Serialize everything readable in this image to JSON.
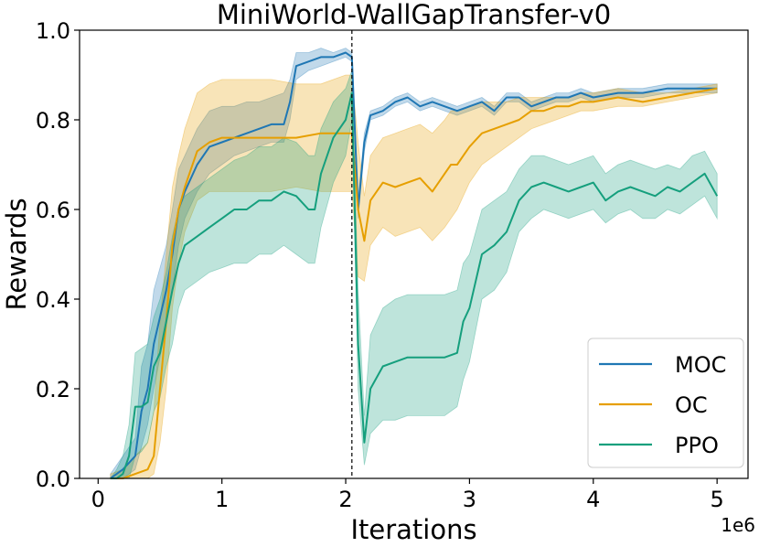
{
  "chart_data": {
    "type": "line",
    "title": "MiniWorld-WallGapTransfer-v0",
    "xlabel": "Iterations",
    "ylabel": "Rewards",
    "x_offset_label": "1e6",
    "xlim": [
      -0.15,
      5.25
    ],
    "ylim": [
      0,
      1.0
    ],
    "xticks": [
      0,
      1,
      2,
      3,
      4,
      5
    ],
    "xtick_labels": [
      "0",
      "1",
      "2",
      "3",
      "4",
      "5"
    ],
    "yticks": [
      0.0,
      0.2,
      0.4,
      0.6,
      0.8,
      1.0
    ],
    "ytick_labels": [
      "0.0",
      "0.2",
      "0.4",
      "0.6",
      "0.8",
      "1.0"
    ],
    "grid": false,
    "legend_position": "lower-right",
    "transfer_line_x": 2.05,
    "series": [
      {
        "name": "MOC",
        "color": "#1f77b4",
        "x": [
          0.1,
          0.2,
          0.3,
          0.35,
          0.4,
          0.45,
          0.5,
          0.55,
          0.6,
          0.65,
          0.7,
          0.8,
          0.9,
          1.0,
          1.1,
          1.2,
          1.3,
          1.4,
          1.5,
          1.55,
          1.6,
          1.7,
          1.8,
          1.9,
          2.0,
          2.05,
          2.1,
          2.15,
          2.2,
          2.3,
          2.4,
          2.5,
          2.6,
          2.7,
          2.8,
          2.9,
          3.0,
          3.1,
          3.2,
          3.3,
          3.4,
          3.5,
          3.6,
          3.7,
          3.8,
          3.9,
          4.0,
          4.2,
          4.4,
          4.6,
          4.8,
          5.0
        ],
        "mean": [
          0.0,
          0.02,
          0.05,
          0.15,
          0.2,
          0.3,
          0.36,
          0.42,
          0.5,
          0.6,
          0.64,
          0.7,
          0.74,
          0.75,
          0.76,
          0.77,
          0.78,
          0.79,
          0.79,
          0.84,
          0.92,
          0.93,
          0.94,
          0.94,
          0.95,
          0.94,
          0.6,
          0.75,
          0.81,
          0.82,
          0.84,
          0.85,
          0.83,
          0.84,
          0.83,
          0.82,
          0.83,
          0.84,
          0.82,
          0.85,
          0.85,
          0.83,
          0.84,
          0.85,
          0.85,
          0.86,
          0.85,
          0.86,
          0.86,
          0.87,
          0.87,
          0.87
        ],
        "lower": [
          0.0,
          0.0,
          0.02,
          0.07,
          0.12,
          0.2,
          0.27,
          0.34,
          0.42,
          0.52,
          0.58,
          0.64,
          0.68,
          0.7,
          0.72,
          0.73,
          0.74,
          0.75,
          0.75,
          0.8,
          0.89,
          0.91,
          0.92,
          0.93,
          0.94,
          0.93,
          0.58,
          0.73,
          0.8,
          0.81,
          0.83,
          0.84,
          0.82,
          0.83,
          0.82,
          0.81,
          0.82,
          0.83,
          0.81,
          0.84,
          0.84,
          0.82,
          0.83,
          0.84,
          0.84,
          0.85,
          0.84,
          0.85,
          0.85,
          0.86,
          0.86,
          0.86
        ],
        "upper": [
          0.01,
          0.05,
          0.09,
          0.25,
          0.3,
          0.42,
          0.47,
          0.52,
          0.6,
          0.69,
          0.72,
          0.78,
          0.82,
          0.83,
          0.83,
          0.84,
          0.84,
          0.85,
          0.86,
          0.89,
          0.95,
          0.95,
          0.96,
          0.95,
          0.96,
          0.95,
          0.62,
          0.77,
          0.82,
          0.83,
          0.85,
          0.86,
          0.84,
          0.85,
          0.84,
          0.83,
          0.84,
          0.85,
          0.83,
          0.86,
          0.86,
          0.84,
          0.85,
          0.86,
          0.86,
          0.87,
          0.86,
          0.87,
          0.87,
          0.88,
          0.88,
          0.88
        ]
      },
      {
        "name": "OC",
        "color": "#e69f00",
        "x": [
          0.1,
          0.2,
          0.3,
          0.4,
          0.45,
          0.5,
          0.55,
          0.6,
          0.65,
          0.7,
          0.8,
          0.9,
          1.0,
          1.2,
          1.4,
          1.6,
          1.8,
          2.0,
          2.05,
          2.1,
          2.15,
          2.2,
          2.3,
          2.4,
          2.5,
          2.6,
          2.7,
          2.8,
          2.85,
          2.9,
          3.0,
          3.1,
          3.2,
          3.3,
          3.4,
          3.5,
          3.6,
          3.7,
          3.8,
          3.9,
          4.0,
          4.2,
          4.4,
          4.6,
          4.8,
          5.0
        ],
        "mean": [
          0.0,
          0.0,
          0.01,
          0.02,
          0.05,
          0.2,
          0.35,
          0.52,
          0.6,
          0.65,
          0.73,
          0.75,
          0.76,
          0.76,
          0.76,
          0.76,
          0.77,
          0.77,
          0.77,
          0.6,
          0.53,
          0.62,
          0.66,
          0.65,
          0.66,
          0.67,
          0.64,
          0.68,
          0.7,
          0.7,
          0.74,
          0.77,
          0.78,
          0.79,
          0.8,
          0.82,
          0.82,
          0.83,
          0.83,
          0.84,
          0.84,
          0.85,
          0.84,
          0.85,
          0.86,
          0.87
        ],
        "lower": [
          0.0,
          0.0,
          0.0,
          0.0,
          0.01,
          0.08,
          0.2,
          0.38,
          0.48,
          0.55,
          0.62,
          0.64,
          0.64,
          0.64,
          0.64,
          0.65,
          0.64,
          0.64,
          0.64,
          0.45,
          0.44,
          0.52,
          0.56,
          0.54,
          0.55,
          0.56,
          0.53,
          0.56,
          0.58,
          0.6,
          0.66,
          0.7,
          0.72,
          0.74,
          0.76,
          0.78,
          0.79,
          0.8,
          0.81,
          0.82,
          0.82,
          0.83,
          0.83,
          0.84,
          0.85,
          0.86
        ],
        "upper": [
          0.01,
          0.02,
          0.05,
          0.08,
          0.15,
          0.35,
          0.5,
          0.65,
          0.72,
          0.78,
          0.86,
          0.88,
          0.89,
          0.89,
          0.89,
          0.88,
          0.88,
          0.9,
          0.9,
          0.75,
          0.63,
          0.72,
          0.76,
          0.77,
          0.78,
          0.79,
          0.77,
          0.8,
          0.82,
          0.82,
          0.83,
          0.84,
          0.84,
          0.84,
          0.85,
          0.85,
          0.85,
          0.85,
          0.85,
          0.86,
          0.86,
          0.87,
          0.86,
          0.86,
          0.87,
          0.88
        ]
      },
      {
        "name": "PPO",
        "color": "#159f7d",
        "x": [
          0.1,
          0.15,
          0.2,
          0.25,
          0.3,
          0.35,
          0.4,
          0.45,
          0.5,
          0.55,
          0.6,
          0.65,
          0.7,
          0.8,
          0.9,
          1.0,
          1.1,
          1.2,
          1.3,
          1.4,
          1.5,
          1.6,
          1.7,
          1.75,
          1.8,
          1.9,
          2.0,
          2.05,
          2.1,
          2.15,
          2.2,
          2.3,
          2.4,
          2.5,
          2.6,
          2.7,
          2.8,
          2.9,
          2.95,
          3.0,
          3.1,
          3.2,
          3.3,
          3.4,
          3.5,
          3.6,
          3.7,
          3.8,
          3.9,
          4.0,
          4.1,
          4.2,
          4.3,
          4.4,
          4.5,
          4.6,
          4.7,
          4.8,
          4.9,
          5.0
        ],
        "mean": [
          0.0,
          0.0,
          0.01,
          0.05,
          0.16,
          0.16,
          0.17,
          0.25,
          0.28,
          0.35,
          0.42,
          0.48,
          0.52,
          0.54,
          0.56,
          0.58,
          0.6,
          0.6,
          0.62,
          0.62,
          0.64,
          0.63,
          0.6,
          0.6,
          0.68,
          0.76,
          0.8,
          0.86,
          0.3,
          0.08,
          0.2,
          0.25,
          0.26,
          0.27,
          0.27,
          0.27,
          0.27,
          0.28,
          0.35,
          0.38,
          0.5,
          0.52,
          0.55,
          0.62,
          0.65,
          0.66,
          0.65,
          0.64,
          0.65,
          0.66,
          0.62,
          0.64,
          0.65,
          0.64,
          0.63,
          0.65,
          0.64,
          0.66,
          0.68,
          0.63
        ],
        "lower": [
          0.0,
          0.0,
          0.0,
          0.0,
          0.05,
          0.06,
          0.08,
          0.15,
          0.18,
          0.25,
          0.3,
          0.38,
          0.42,
          0.44,
          0.46,
          0.47,
          0.48,
          0.48,
          0.5,
          0.5,
          0.52,
          0.5,
          0.48,
          0.48,
          0.56,
          0.66,
          0.72,
          0.8,
          0.2,
          0.03,
          0.1,
          0.13,
          0.13,
          0.14,
          0.14,
          0.14,
          0.14,
          0.16,
          0.22,
          0.26,
          0.4,
          0.42,
          0.46,
          0.55,
          0.58,
          0.6,
          0.59,
          0.58,
          0.59,
          0.6,
          0.57,
          0.59,
          0.6,
          0.58,
          0.58,
          0.6,
          0.59,
          0.61,
          0.63,
          0.58
        ],
        "upper": [
          0.0,
          0.02,
          0.05,
          0.12,
          0.28,
          0.29,
          0.3,
          0.36,
          0.4,
          0.46,
          0.54,
          0.6,
          0.63,
          0.65,
          0.67,
          0.69,
          0.71,
          0.72,
          0.74,
          0.74,
          0.76,
          0.75,
          0.72,
          0.72,
          0.78,
          0.84,
          0.87,
          0.91,
          0.42,
          0.14,
          0.32,
          0.38,
          0.4,
          0.41,
          0.41,
          0.41,
          0.41,
          0.42,
          0.48,
          0.5,
          0.6,
          0.62,
          0.64,
          0.69,
          0.72,
          0.72,
          0.71,
          0.7,
          0.71,
          0.72,
          0.68,
          0.7,
          0.71,
          0.7,
          0.69,
          0.7,
          0.69,
          0.72,
          0.73,
          0.68
        ]
      }
    ]
  }
}
